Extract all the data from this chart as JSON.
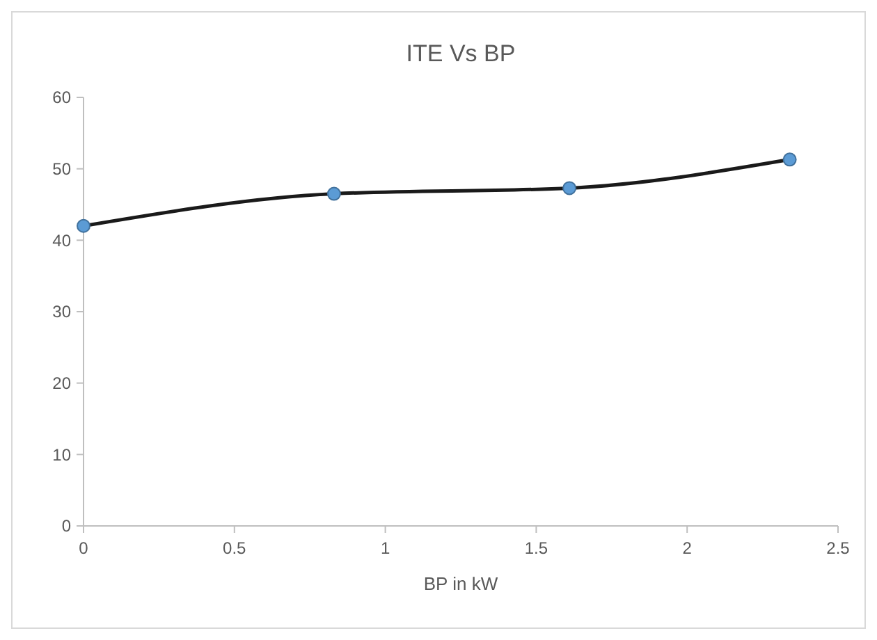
{
  "chart_data": {
    "type": "line",
    "title": "ITE Vs BP",
    "xlabel": "BP in kW",
    "x": [
      0,
      0.83,
      1.61,
      2.34
    ],
    "series": [
      {
        "color": "#1a1a1a",
        "values": [
          42,
          46.5,
          47.3,
          51.3
        ]
      }
    ],
    "xlim": [
      0,
      2.5
    ],
    "xticks": [
      0,
      0.5,
      1,
      1.5,
      2,
      2.5
    ],
    "ylim": [
      0,
      60
    ],
    "yticks": [
      0,
      10,
      20,
      30,
      40,
      50,
      60
    ],
    "grid": false,
    "marker": "circle",
    "line_style": "solid"
  }
}
